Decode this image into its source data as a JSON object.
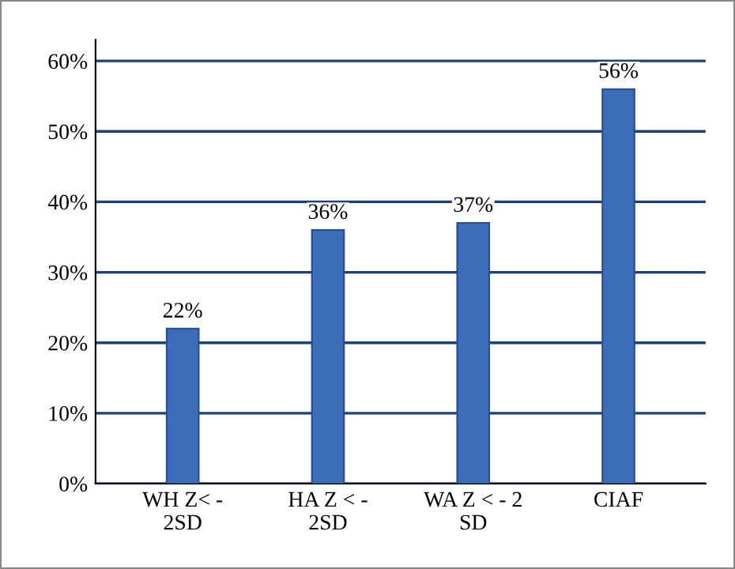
{
  "chart_data": {
    "type": "bar",
    "categories": [
      "WH Z< -\n2SD",
      "HA Z < -\n2SD",
      "WA Z < - 2\nSD",
      "CIAF"
    ],
    "values": [
      22,
      36,
      37,
      56
    ],
    "color": "#3d6cb9",
    "ylim": [
      0,
      60
    ],
    "yticks": [
      {
        "value": 0,
        "label": "0%"
      },
      {
        "value": 10,
        "label": "10%"
      },
      {
        "value": 20,
        "label": "20%"
      },
      {
        "value": 30,
        "label": "30%"
      },
      {
        "value": 40,
        "label": "40%"
      },
      {
        "value": 50,
        "label": "50%"
      },
      {
        "value": 60,
        "label": "60%"
      }
    ],
    "value_labels": [
      "22%",
      "36%",
      "37%",
      "56%"
    ],
    "grid": "y"
  }
}
